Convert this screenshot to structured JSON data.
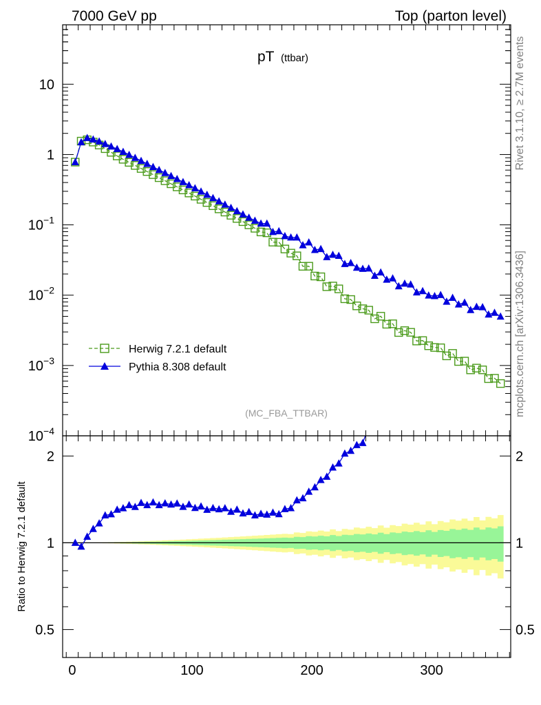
{
  "header": {
    "left": "7000 GeV pp",
    "right": "Top (parton level)"
  },
  "side_labels": {
    "rivet": "Rivet 3.1.10, ≥ 2.7M events",
    "mcplots": "mcplots.cern.ch [arXiv:1306.3436]"
  },
  "colors": {
    "herwig": "#4a9a1a",
    "pythia": "#0000dd",
    "band_inner": "#98f598",
    "band_outer": "#fafa98"
  },
  "chart_data": [
    {
      "type": "line",
      "scale": "log",
      "title_main": "pT",
      "title_sub": "(ttbar)",
      "watermark": "(MC_FBA_TTBAR)",
      "xlim": [
        -8,
        366
      ],
      "ylim": [
        0.0001,
        70
      ],
      "y_ticks": [
        {
          "value": 10,
          "base": "10",
          "exp": ""
        },
        {
          "value": 1,
          "base": "1",
          "exp": ""
        },
        {
          "value": 0.1,
          "base": "10",
          "exp": "−1"
        },
        {
          "value": 0.01,
          "base": "10",
          "exp": "−2"
        },
        {
          "value": 0.001,
          "base": "10",
          "exp": "−3"
        },
        {
          "value": 0.0001,
          "base": "10",
          "exp": "−4"
        }
      ],
      "legend_position": "bottom-left",
      "series": [
        {
          "name": "Herwig 7.2.1 default",
          "marker": "open-square",
          "line": "dashed",
          "anchors": [
            [
              2.5,
              0.78
            ],
            [
              7.5,
              1.55
            ],
            [
              12.5,
              1.62
            ],
            [
              20,
              1.45
            ],
            [
              40,
              0.9
            ],
            [
              100,
              0.27
            ],
            [
              150,
              0.095
            ],
            [
              175,
              0.052
            ],
            [
              200,
              0.021
            ],
            [
              250,
              0.0052
            ],
            [
              300,
              0.0019
            ],
            [
              357.5,
              0.00058
            ]
          ]
        },
        {
          "name": "Pythia 8.308 default",
          "marker": "filled-triangle",
          "line": "solid",
          "anchors": [
            [
              2.5,
              0.78
            ],
            [
              7.5,
              1.5
            ],
            [
              12.5,
              1.72
            ],
            [
              20,
              1.6
            ],
            [
              40,
              1.15
            ],
            [
              100,
              0.35
            ],
            [
              150,
              0.12
            ],
            [
              200,
              0.048
            ],
            [
              250,
              0.021
            ],
            [
              300,
              0.01
            ],
            [
              357.5,
              0.0052
            ]
          ]
        }
      ]
    },
    {
      "type": "line",
      "scale": "log",
      "ylabel": "Ratio to Herwig 7.2.1 default",
      "xlim": [
        -8,
        366
      ],
      "ylim": [
        0.4,
        2.35
      ],
      "y_ticks": [
        2,
        1,
        0.5
      ],
      "x_ticks": [
        0,
        100,
        200,
        300
      ],
      "reference": 1,
      "band_inner_halfwidth_at_end": 0.13,
      "band_outer_halfwidth_at_end": 0.23,
      "ratio_anchors": [
        [
          2.5,
          1.0
        ],
        [
          7.5,
          0.97
        ],
        [
          12.5,
          1.05
        ],
        [
          20,
          1.15
        ],
        [
          30,
          1.26
        ],
        [
          45,
          1.33
        ],
        [
          60,
          1.36
        ],
        [
          70,
          1.37
        ],
        [
          90,
          1.35
        ],
        [
          110,
          1.32
        ],
        [
          130,
          1.3
        ],
        [
          145,
          1.27
        ],
        [
          160,
          1.25
        ],
        [
          170,
          1.26
        ],
        [
          180,
          1.3
        ],
        [
          190,
          1.42
        ],
        [
          200,
          1.52
        ],
        [
          210,
          1.67
        ],
        [
          220,
          1.84
        ],
        [
          230,
          2.08
        ],
        [
          237.5,
          2.17
        ],
        [
          242.5,
          2.22
        ],
        [
          245,
          2.38
        ]
      ]
    }
  ]
}
